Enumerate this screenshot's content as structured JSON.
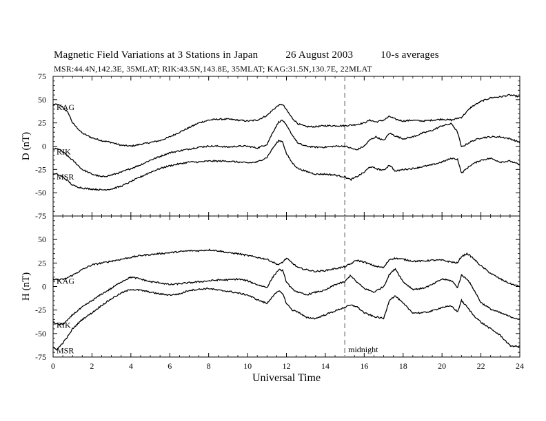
{
  "chart_data": [
    {
      "type": "line",
      "title": "Magnetic Field Variations at 3 Stations in Japan",
      "date": "26 August 2003",
      "averaging": "10-s averages",
      "subtitle": "MSR:44.4N,142.3E, 35MLAT;  RIK:43.5N,143.8E, 35MLAT;  KAG:31.5N,130.7E, 22MLAT",
      "ylabel": "D (nT)",
      "xlabel": "Universal Time",
      "xlim": [
        0,
        24
      ],
      "ylim": [
        -75,
        75
      ],
      "yticks": [
        -75,
        -50,
        -25,
        0,
        25,
        50,
        75
      ],
      "xticks": [
        0,
        2,
        4,
        6,
        8,
        10,
        12,
        14,
        16,
        18,
        20,
        22,
        24
      ],
      "series": [
        {
          "name": "KAG",
          "x": [
            0,
            0.2,
            0.5,
            0.8,
            1.0,
            1.5,
            2,
            2.5,
            3,
            3.5,
            4,
            4.5,
            5,
            5.5,
            6,
            6.5,
            7,
            7.5,
            8,
            8.5,
            9,
            9.5,
            10,
            10.5,
            11,
            11.3,
            11.6,
            11.8,
            12,
            12.3,
            12.6,
            13,
            13.5,
            14,
            14.5,
            15,
            15.5,
            16,
            16.3,
            16.6,
            17,
            17.3,
            17.6,
            18,
            18.5,
            19,
            19.5,
            20,
            20.5,
            20.8,
            21,
            21.5,
            22,
            22.5,
            23,
            23.5,
            24
          ],
          "values": [
            44,
            45,
            42,
            35,
            25,
            14,
            9,
            6,
            4,
            1,
            0,
            2,
            4,
            6,
            10,
            15,
            20,
            25,
            28,
            29,
            29,
            28,
            27,
            28,
            33,
            39,
            44,
            45,
            39,
            30,
            24,
            21,
            21,
            22,
            22,
            22,
            23,
            25,
            28,
            26,
            28,
            32,
            29,
            27,
            28,
            27,
            28,
            29,
            28,
            30,
            31,
            42,
            48,
            52,
            53,
            55,
            53
          ]
        },
        {
          "name": "RIK",
          "x": [
            0,
            0.3,
            0.6,
            1.0,
            1.5,
            2,
            2.5,
            3,
            3.5,
            4,
            4.5,
            5,
            5.5,
            6,
            6.5,
            7,
            7.5,
            8,
            8.5,
            9,
            9.5,
            10,
            10.5,
            11,
            11.3,
            11.6,
            11.8,
            12,
            12.3,
            12.6,
            13,
            13.5,
            14,
            14.5,
            15,
            15.3,
            15.6,
            16,
            16.3,
            16.6,
            17,
            17.3,
            17.6,
            18,
            18.5,
            19,
            19.5,
            20,
            20.5,
            20.8,
            21,
            21.5,
            22,
            22.5,
            23,
            23.5,
            24
          ],
          "values": [
            -3,
            -3,
            -8,
            -15,
            -25,
            -30,
            -33,
            -31,
            -28,
            -24,
            -20,
            -15,
            -11,
            -7,
            -5,
            -3,
            -1,
            0,
            0,
            -1,
            0,
            0,
            -2,
            2,
            15,
            26,
            28,
            22,
            12,
            3,
            0,
            -1,
            -1,
            0,
            0,
            -2,
            -4,
            0,
            7,
            10,
            6,
            14,
            11,
            8,
            10,
            14,
            17,
            22,
            24,
            15,
            -1,
            5,
            9,
            10,
            10,
            8,
            4
          ]
        },
        {
          "name": "MSR",
          "x": [
            0,
            0.2,
            0.5,
            0.8,
            1.0,
            1.5,
            2,
            2.5,
            3,
            3.5,
            4,
            4.5,
            5,
            5.5,
            6,
            6.5,
            7,
            7.5,
            8,
            8.5,
            9,
            9.5,
            10,
            10.5,
            11,
            11.3,
            11.6,
            11.8,
            12,
            12.3,
            12.6,
            13,
            13.5,
            14,
            14.5,
            15,
            15.3,
            15.6,
            16,
            16.3,
            16.6,
            17,
            17.3,
            17.6,
            18,
            18.5,
            19,
            19.5,
            20,
            20.5,
            20.8,
            21,
            21.5,
            22,
            22.5,
            23,
            23.5,
            24
          ],
          "values": [
            -30,
            -30,
            -33,
            -38,
            -42,
            -45,
            -46,
            -47,
            -46,
            -43,
            -38,
            -33,
            -28,
            -24,
            -21,
            -19,
            -17,
            -17,
            -16,
            -16,
            -16,
            -17,
            -18,
            -17,
            -12,
            -2,
            6,
            5,
            -8,
            -18,
            -24,
            -27,
            -30,
            -30,
            -31,
            -33,
            -36,
            -33,
            -28,
            -22,
            -24,
            -26,
            -20,
            -27,
            -25,
            -24,
            -22,
            -20,
            -17,
            -13,
            -14,
            -29,
            -20,
            -15,
            -13,
            -17,
            -16,
            -20
          ]
        }
      ]
    },
    {
      "type": "line",
      "ylabel": "H (nT)",
      "xlabel": "Universal Time",
      "xlim": [
        0,
        24
      ],
      "ylim": [
        -75,
        75
      ],
      "yticks": [
        -75,
        -50,
        -25,
        0,
        25,
        50,
        75
      ],
      "xticks": [
        0,
        2,
        4,
        6,
        8,
        10,
        12,
        14,
        16,
        18,
        20,
        22,
        24
      ],
      "annotations": [
        {
          "text": "midnight",
          "x": 15
        }
      ],
      "series": [
        {
          "name": "KAG",
          "x": [
            0,
            0.3,
            0.6,
            1.0,
            1.5,
            2,
            2.5,
            3,
            3.5,
            4,
            4.5,
            5,
            5.5,
            6,
            6.5,
            7,
            7.5,
            8,
            8.5,
            9,
            9.5,
            10,
            10.5,
            11,
            11.3,
            11.6,
            11.8,
            12,
            12.3,
            12.6,
            13,
            13.5,
            14,
            14.5,
            15,
            15.3,
            15.6,
            16,
            16.5,
            17,
            17.3,
            17.6,
            18,
            18.5,
            19,
            19.5,
            20,
            20.5,
            20.8,
            21,
            21.3,
            21.6,
            22,
            22.5,
            23,
            23.5,
            24
          ],
          "values": [
            8,
            7,
            8,
            12,
            18,
            23,
            25,
            27,
            29,
            31,
            33,
            34,
            35,
            36,
            37,
            38,
            38,
            39,
            38,
            36,
            35,
            33,
            31,
            29,
            26,
            23,
            26,
            30,
            25,
            20,
            18,
            16,
            17,
            19,
            21,
            24,
            28,
            26,
            22,
            20,
            29,
            30,
            29,
            27,
            27,
            28,
            28,
            26,
            25,
            32,
            35,
            30,
            22,
            14,
            8,
            3,
            0
          ]
        },
        {
          "name": "RIK",
          "x": [
            0,
            0.2,
            0.5,
            0.8,
            1.0,
            1.5,
            2,
            2.5,
            3,
            3.5,
            4,
            4.5,
            5,
            5.5,
            6,
            6.5,
            7,
            7.5,
            8,
            8.5,
            9,
            9.5,
            10,
            10.5,
            11,
            11.3,
            11.6,
            11.8,
            12,
            12.3,
            12.6,
            13,
            13.5,
            14,
            14.5,
            15,
            15.3,
            15.6,
            16,
            16.5,
            17,
            17.3,
            17.6,
            18,
            18.5,
            19,
            19.5,
            20,
            20.5,
            20.8,
            21,
            21.3,
            21.6,
            22,
            22.5,
            23,
            23.5,
            24
          ],
          "values": [
            -38,
            -40,
            -40,
            -35,
            -30,
            -22,
            -15,
            -8,
            -2,
            5,
            10,
            8,
            5,
            4,
            2,
            3,
            4,
            5,
            6,
            7,
            7,
            8,
            6,
            2,
            -1,
            10,
            18,
            17,
            5,
            -3,
            -6,
            -9,
            -6,
            -4,
            2,
            5,
            12,
            5,
            -2,
            -6,
            0,
            13,
            19,
            5,
            -3,
            -2,
            2,
            8,
            6,
            -1,
            12,
            8,
            -2,
            -17,
            -24,
            -28,
            -32,
            -35
          ]
        },
        {
          "name": "MSR",
          "x": [
            0,
            0.2,
            0.5,
            0.8,
            1.0,
            1.5,
            2,
            2.5,
            3,
            3.5,
            4,
            4.5,
            5,
            5.5,
            6,
            6.5,
            7,
            7.5,
            8,
            8.5,
            9,
            9.5,
            10,
            10.5,
            11,
            11.3,
            11.6,
            11.8,
            12,
            12.3,
            12.6,
            13,
            13.5,
            14,
            14.5,
            15,
            15.3,
            15.6,
            16,
            16.5,
            17,
            17.3,
            17.6,
            18,
            18.5,
            19,
            19.5,
            20,
            20.5,
            20.8,
            21,
            21.3,
            21.6,
            22,
            22.5,
            23,
            23.5,
            24
          ],
          "values": [
            -65,
            -67,
            -60,
            -52,
            -45,
            -35,
            -28,
            -20,
            -13,
            -7,
            -3,
            -4,
            -6,
            -8,
            -9,
            -8,
            -4,
            -3,
            -2,
            -4,
            -5,
            -7,
            -9,
            -14,
            -18,
            -10,
            -5,
            -7,
            -18,
            -25,
            -27,
            -33,
            -34,
            -30,
            -26,
            -22,
            -20,
            -21,
            -28,
            -32,
            -34,
            -14,
            -10,
            -18,
            -28,
            -28,
            -26,
            -22,
            -21,
            -27,
            -15,
            -22,
            -30,
            -38,
            -45,
            -52,
            -63,
            -64
          ]
        }
      ]
    }
  ]
}
